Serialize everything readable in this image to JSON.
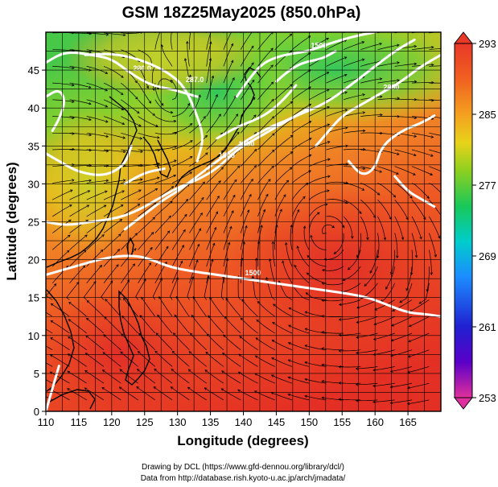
{
  "chart_data": {
    "type": "heatmap",
    "title": "GSM 18Z25May2025 (850.0hPa)",
    "xlabel": "Longitude (degrees)",
    "ylabel": "Latitude  (degrees)",
    "xlim": [
      110,
      170
    ],
    "ylim": [
      0,
      50
    ],
    "x_ticks": [
      110,
      115,
      120,
      125,
      130,
      135,
      140,
      145,
      150,
      155,
      160,
      165
    ],
    "y_ticks": [
      0,
      5,
      10,
      15,
      20,
      25,
      30,
      35,
      40,
      45
    ],
    "grid": true,
    "colorbar": {
      "min": 253,
      "max": 293,
      "labels": [
        293,
        285,
        277,
        269,
        261,
        253
      ],
      "colors": [
        "#e0309a",
        "#5a00c8",
        "#2020d0",
        "#1c8cff",
        "#00cccc",
        "#18c85a",
        "#8ccf20",
        "#e8d21a",
        "#f4a020",
        "#f06020",
        "#e83828"
      ]
    },
    "contours": [
      {
        "label": "280.0",
        "points": [
          [
            110,
            46
          ],
          [
            113,
            47.5
          ],
          [
            117,
            47
          ],
          [
            120,
            46.5
          ],
          [
            123,
            44.5
          ],
          [
            126,
            43
          ],
          [
            129,
            42.5
          ],
          [
            131,
            42
          ],
          [
            133,
            41.5
          ]
        ]
      },
      {
        "label": "287.0",
        "points": [
          [
            116,
            47
          ],
          [
            120,
            47.2
          ],
          [
            124,
            46.5
          ],
          [
            128,
            45
          ],
          [
            131,
            43
          ],
          [
            133,
            39
          ],
          [
            134,
            36
          ],
          [
            133,
            33
          ]
        ]
      },
      {
        "label": "",
        "points": [
          [
            136,
            36
          ],
          [
            139,
            37.5
          ],
          [
            142,
            38.5
          ],
          [
            144,
            39.5
          ],
          [
            146,
            41
          ],
          [
            148,
            43
          ]
        ]
      },
      {
        "label": "1500",
        "points": [
          [
            139,
            41.5
          ],
          [
            141,
            44
          ],
          [
            143,
            46
          ],
          [
            146,
            47
          ],
          [
            150,
            47.5
          ],
          [
            153,
            48.5
          ],
          [
            157,
            49.5
          ],
          [
            160,
            50
          ]
        ]
      },
      {
        "label": "",
        "points": [
          [
            145,
            43.5
          ],
          [
            147,
            45
          ],
          [
            149,
            46
          ],
          [
            152,
            46.5
          ],
          [
            154,
            47.5
          ]
        ]
      },
      {
        "label": "",
        "points": [
          [
            110,
            41.5
          ],
          [
            112,
            42.5
          ],
          [
            113,
            41
          ],
          [
            112,
            38.5
          ],
          [
            111,
            37
          ]
        ]
      },
      {
        "label": "",
        "points": [
          [
            110,
            34
          ],
          [
            112,
            33
          ],
          [
            115,
            31.5
          ],
          [
            119,
            31
          ],
          [
            122,
            32.5
          ],
          [
            123,
            35
          ]
        ]
      },
      {
        "label": "",
        "points": [
          [
            122,
            30
          ],
          [
            125,
            31.5
          ],
          [
            128,
            32
          ]
        ]
      },
      {
        "label": "1500",
        "points": [
          [
            122,
            24
          ],
          [
            125,
            26
          ],
          [
            128,
            28
          ],
          [
            130,
            29
          ],
          [
            133,
            31
          ],
          [
            136,
            33
          ],
          [
            140,
            35.5
          ],
          [
            144,
            37.5
          ],
          [
            147,
            38.5
          ],
          [
            150,
            40
          ]
        ]
      },
      {
        "label": "2890",
        "points": [
          [
            151,
            35
          ],
          [
            153,
            37
          ],
          [
            155,
            39
          ],
          [
            158,
            40.5
          ],
          [
            161,
            42
          ],
          [
            164,
            43.5
          ],
          [
            167,
            45.5
          ],
          [
            170,
            47
          ]
        ]
      },
      {
        "label": "1500",
        "points": [
          [
            110,
            25
          ],
          [
            113,
            24.5
          ],
          [
            117,
            25
          ],
          [
            121,
            25.5
          ],
          [
            124,
            26.5
          ],
          [
            127,
            28
          ],
          [
            130,
            29.5
          ],
          [
            133,
            30.5
          ],
          [
            136,
            32
          ],
          [
            139,
            34.5
          ],
          [
            142,
            36
          ],
          [
            145,
            37.5
          ],
          [
            148,
            39
          ],
          [
            151,
            40
          ],
          [
            154,
            41.5
          ],
          [
            157,
            43.5
          ],
          [
            160,
            45.5
          ],
          [
            163,
            47.5
          ],
          [
            166,
            49
          ]
        ]
      },
      {
        "label": "",
        "points": [
          [
            156,
            33
          ],
          [
            158,
            31
          ],
          [
            160,
            32
          ],
          [
            161,
            35
          ],
          [
            164,
            37
          ],
          [
            167,
            38
          ],
          [
            169,
            39
          ]
        ]
      },
      {
        "label": "",
        "points": [
          [
            163,
            31
          ],
          [
            165,
            29
          ],
          [
            167,
            28
          ],
          [
            169,
            27
          ]
        ]
      },
      {
        "label": "1500",
        "points": [
          [
            110,
            18
          ],
          [
            114,
            19
          ],
          [
            118,
            20
          ],
          [
            121,
            20.5
          ],
          [
            124,
            20.5
          ],
          [
            126,
            20
          ],
          [
            129,
            19
          ],
          [
            132,
            18.5
          ],
          [
            136,
            18
          ],
          [
            140,
            17.5
          ],
          [
            144,
            17
          ],
          [
            148,
            16.5
          ],
          [
            152,
            16
          ],
          [
            156,
            15.5
          ],
          [
            159,
            15
          ],
          [
            162,
            14
          ],
          [
            165,
            13
          ],
          [
            168,
            12.8
          ],
          [
            170,
            12.5
          ]
        ]
      },
      {
        "label": "",
        "points": [
          [
            110,
            0
          ],
          [
            111,
            3
          ],
          [
            112,
            6
          ]
        ]
      }
    ]
  },
  "credits": {
    "line1": "Drawing by DCL (https://www.gfd-dennou.org/library/dcl/)",
    "line2": "Data from http://database.rish.kyoto-u.ac.jp/arch/jmadata/"
  }
}
